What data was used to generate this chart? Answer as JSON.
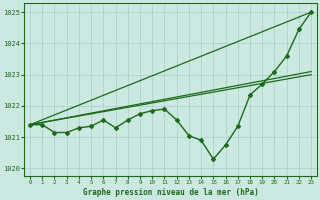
{
  "title": "Graphe pression niveau de la mer (hPa)",
  "x_values": [
    0,
    1,
    2,
    3,
    4,
    5,
    6,
    7,
    8,
    9,
    10,
    11,
    12,
    13,
    14,
    15,
    16,
    17,
    18,
    19,
    20,
    21,
    22,
    23
  ],
  "main_line_y": [
    1021.4,
    1021.4,
    1021.15,
    1021.15,
    1021.3,
    1021.35,
    1021.55,
    1021.3,
    1021.55,
    1021.75,
    1021.85,
    1021.9,
    1021.55,
    1021.05,
    1020.9,
    1020.3,
    1020.75,
    1021.35,
    1022.35,
    1022.7,
    1023.1,
    1023.6,
    1024.45,
    1025.0
  ],
  "trend_line1_x": [
    0,
    23
  ],
  "trend_line1_y": [
    1021.4,
    1025.0
  ],
  "trend_line2_x": [
    0,
    23
  ],
  "trend_line2_y": [
    1021.4,
    1023.1
  ],
  "trend_line3_x": [
    0,
    23
  ],
  "trend_line3_y": [
    1021.4,
    1023.0
  ],
  "line_color": "#1a6b1a",
  "bg_color": "#cce8e0",
  "grid_color": "#aacccc",
  "ylim": [
    1019.75,
    1025.3
  ],
  "yticks": [
    1020,
    1021,
    1022,
    1023,
    1024,
    1025
  ],
  "xticks": [
    0,
    1,
    2,
    3,
    4,
    5,
    6,
    7,
    8,
    9,
    10,
    11,
    12,
    13,
    14,
    15,
    16,
    17,
    18,
    19,
    20,
    21,
    22,
    23
  ]
}
